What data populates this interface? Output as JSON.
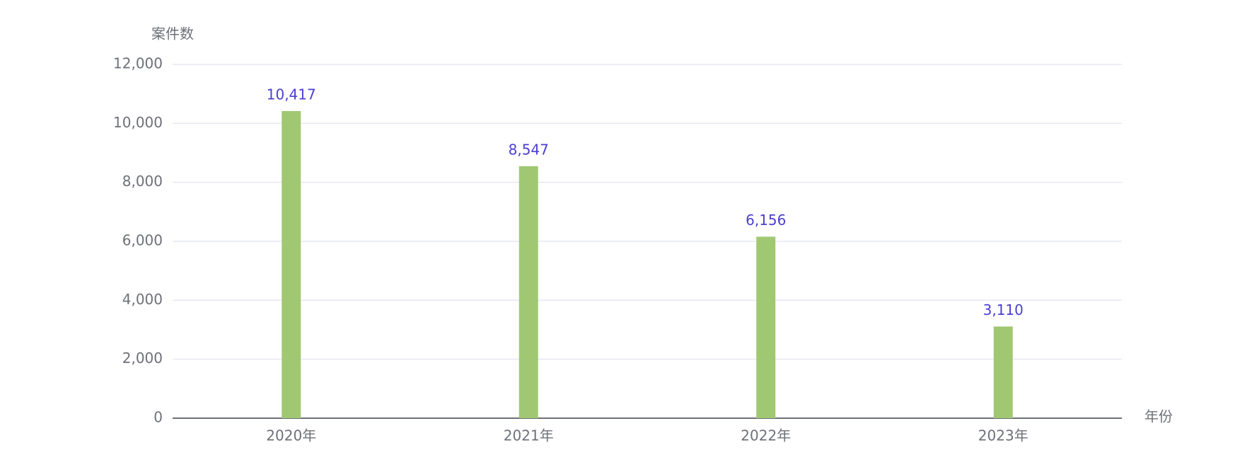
{
  "chart_data": {
    "type": "bar",
    "y_axis_label": "案件数",
    "x_axis_label": "年份",
    "categories": [
      "2020年",
      "2021年",
      "2022年",
      "2023年"
    ],
    "values": [
      10417,
      8547,
      6156,
      3110
    ],
    "value_labels": [
      "10,417",
      "8,547",
      "6,156",
      "3,110"
    ],
    "color": "#a0c873",
    "label_color": "#4b3fd1",
    "ylim": [
      0,
      12000
    ],
    "yticks": [
      0,
      {
        "value": 2000,
        "label": "2,000"
      },
      {
        "value": 4000,
        "label": "4,000"
      },
      {
        "value": 6000,
        "label": "6,000"
      },
      {
        "value": 8000,
        "label": "8,000"
      },
      {
        "value": 10000,
        "label": "10,000"
      },
      {
        "value": 12000,
        "label": "12,000"
      }
    ],
    "grid": true
  }
}
